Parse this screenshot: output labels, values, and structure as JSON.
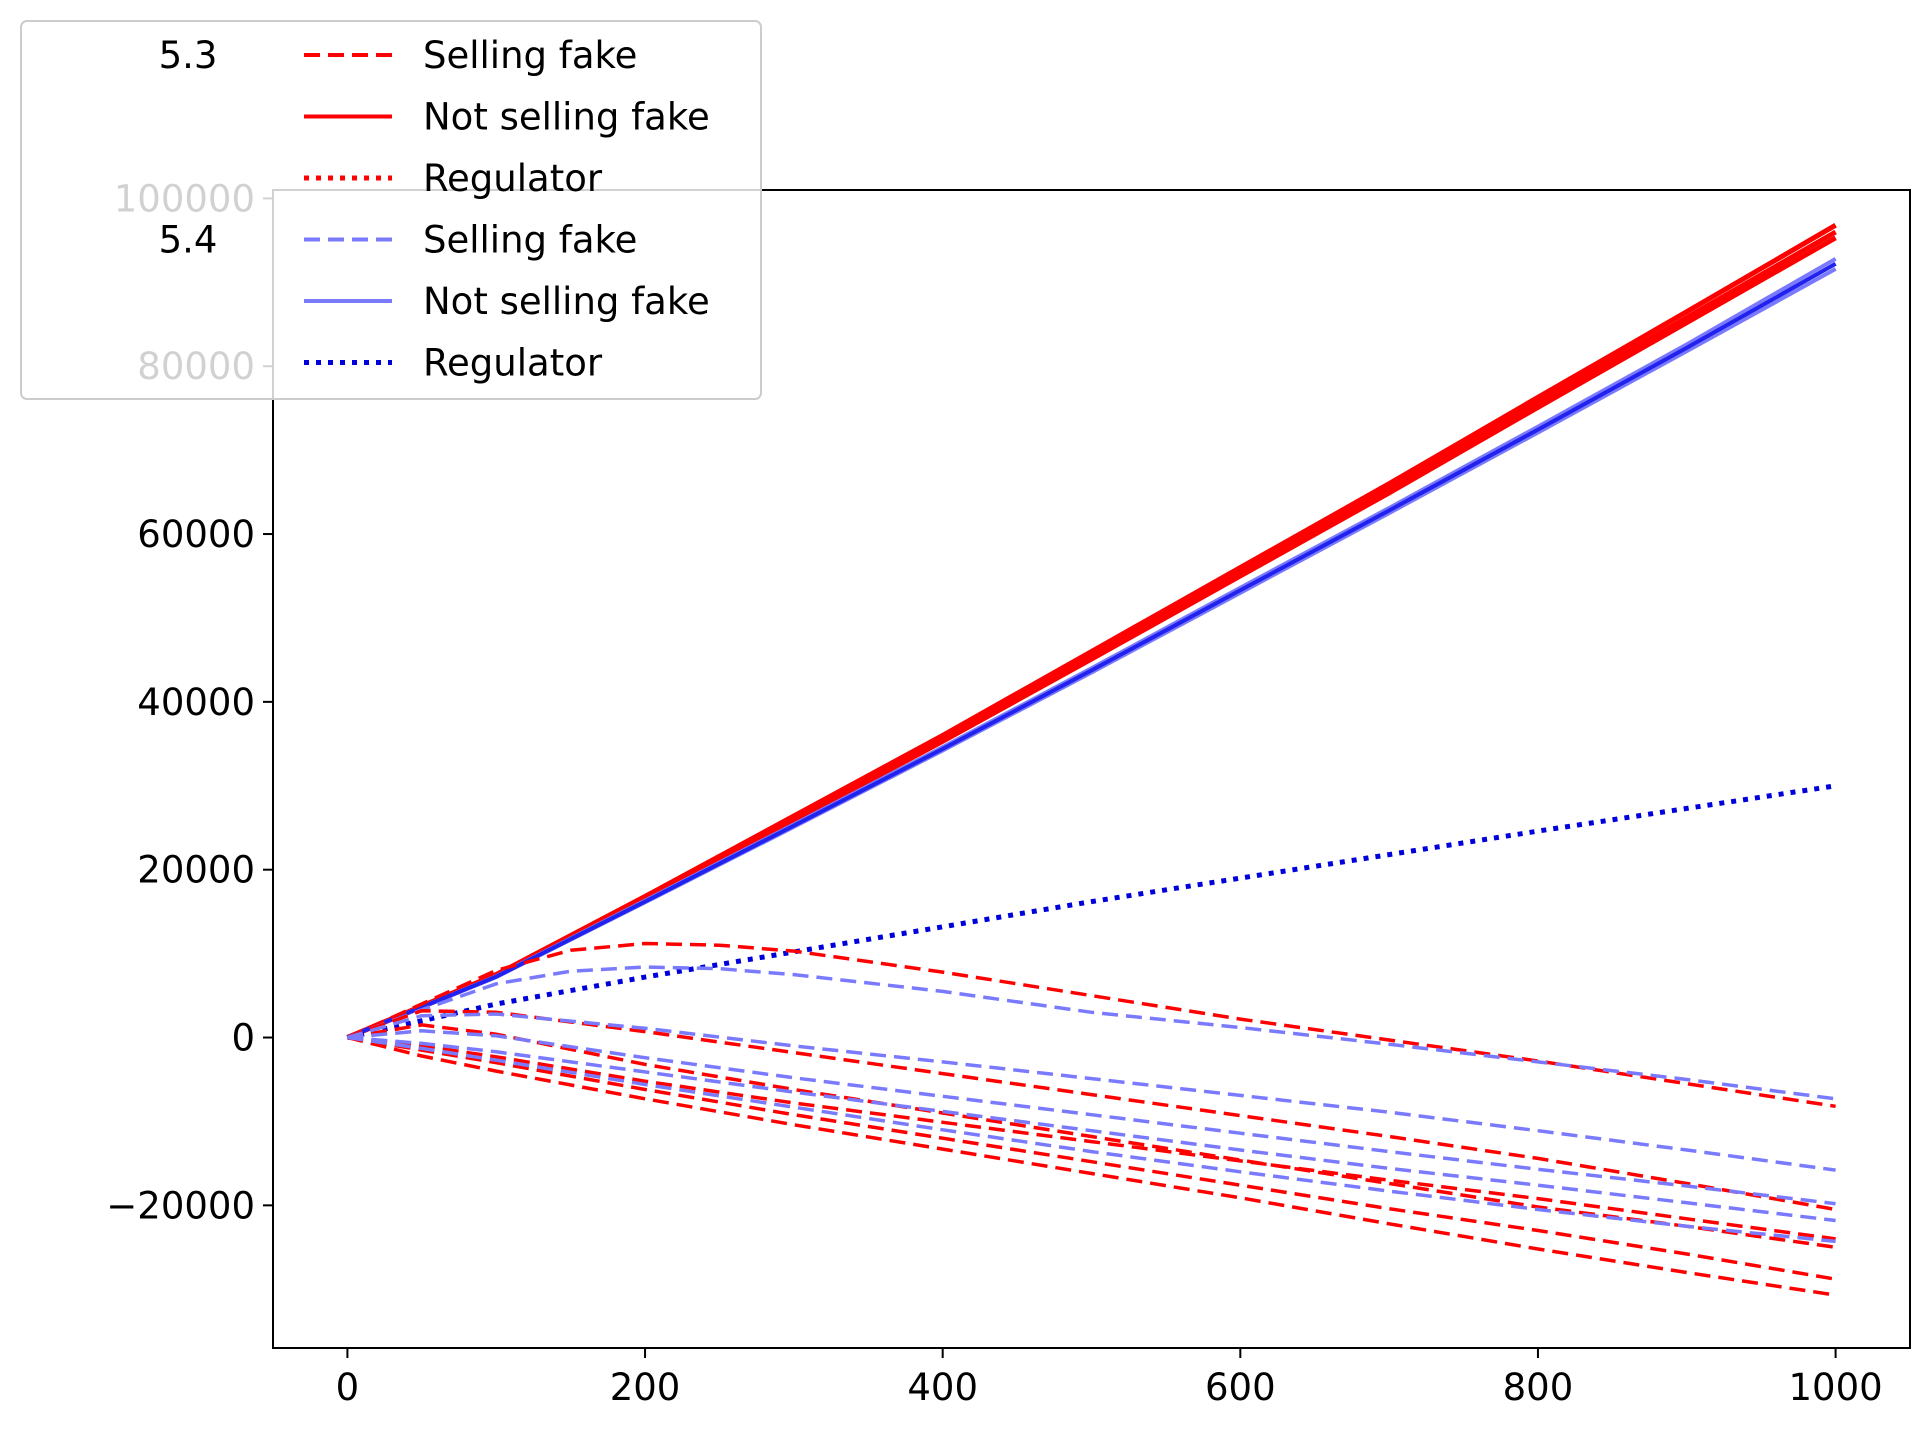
{
  "chart_data": {
    "type": "line",
    "title": "",
    "xlabel": "",
    "ylabel": "",
    "xlim": [
      -50,
      1050
    ],
    "ylim": [
      -37000,
      101000
    ],
    "x_ticks": [
      "0",
      "200",
      "400",
      "600",
      "800",
      "1000"
    ],
    "x_tick_values": [
      0,
      200,
      400,
      600,
      800,
      1000
    ],
    "y_ticks": [
      "−20000",
      "0",
      "20000",
      "40000",
      "60000",
      "80000",
      "100000"
    ],
    "y_tick_values": [
      -20000,
      0,
      20000,
      40000,
      60000,
      80000,
      100000
    ],
    "grid": false,
    "legend": {
      "placement": "top-left",
      "groups": [
        {
          "title": "5.3",
          "entries": [
            {
              "label": "Selling fake",
              "style": "dashed",
              "color": "#ff0000"
            },
            {
              "label": "Not selling fake",
              "style": "solid",
              "color": "#ff0000"
            },
            {
              "label": "Regulator",
              "style": "dotted",
              "color": "#ff0000"
            }
          ]
        },
        {
          "title": "5.4",
          "entries": [
            {
              "label": "Selling fake",
              "style": "dashed",
              "color": "#7a7aff"
            },
            {
              "label": "Not selling fake",
              "style": "solid",
              "color": "#7a7aff"
            },
            {
              "label": "Regulator",
              "style": "dotted",
              "color": "#0000dd"
            }
          ]
        }
      ]
    },
    "series": [
      {
        "group": "5.3",
        "style": "solid",
        "color": "#ff0000",
        "x": [
          0,
          100,
          200,
          300,
          400,
          500,
          600,
          700,
          800,
          900,
          1000
        ],
        "y": [
          0,
          7500,
          16800,
          26400,
          36000,
          46000,
          56000,
          66000,
          76300,
          86500,
          96800
        ]
      },
      {
        "group": "5.3",
        "style": "solid",
        "color": "#ff0000",
        "x": [
          0,
          100,
          200,
          300,
          400,
          500,
          600,
          700,
          800,
          900,
          1000
        ],
        "y": [
          0,
          7400,
          16600,
          26100,
          35600,
          45500,
          55500,
          65500,
          75700,
          85800,
          96000
        ]
      },
      {
        "group": "5.3",
        "style": "solid",
        "color": "#ff0000",
        "x": [
          0,
          100,
          200,
          300,
          400,
          500,
          600,
          700,
          800,
          900,
          1000
        ],
        "y": [
          0,
          7300,
          16400,
          25800,
          35300,
          45100,
          55000,
          64900,
          75100,
          85200,
          95300
        ]
      },
      {
        "group": "5.4",
        "style": "solid",
        "color": "#7a7aff",
        "x": [
          0,
          100,
          200,
          300,
          400,
          500,
          600,
          700,
          800,
          900,
          1000
        ],
        "y": [
          0,
          7300,
          16300,
          25400,
          34600,
          44000,
          53600,
          63100,
          72800,
          82600,
          92800
        ]
      },
      {
        "group": "5.4",
        "style": "solid",
        "color": "#7a7aff",
        "x": [
          0,
          100,
          200,
          300,
          400,
          500,
          600,
          700,
          800,
          900,
          1000
        ],
        "y": [
          0,
          7200,
          16100,
          25100,
          34200,
          43500,
          53000,
          62500,
          72100,
          81800,
          91600
        ]
      },
      {
        "group": "5.4",
        "style": "solid",
        "color": "#2222ee",
        "x": [
          0,
          100,
          200,
          300,
          400,
          500,
          600,
          700,
          800,
          900,
          1000
        ],
        "y": [
          0,
          7250,
          16200,
          25250,
          34400,
          43750,
          53300,
          62800,
          72450,
          82200,
          92200
        ]
      },
      {
        "group": "5.4",
        "style": "dotted",
        "color": "#0000dd",
        "x": [
          0,
          100,
          200,
          300,
          400,
          500,
          600,
          700,
          800,
          900,
          1000
        ],
        "y": [
          0,
          4000,
          7200,
          10200,
          13200,
          16200,
          19000,
          21800,
          24600,
          27300,
          30000
        ]
      },
      {
        "group": "5.3",
        "style": "dashed",
        "color": "#ff0000",
        "x": [
          0,
          50,
          100,
          150,
          200,
          250,
          300,
          400,
          500,
          600,
          700,
          800,
          900,
          1000
        ],
        "y": [
          0,
          4000,
          8000,
          10400,
          11200,
          11000,
          10300,
          7800,
          5000,
          2200,
          -300,
          -2800,
          -5500,
          -8200
        ]
      },
      {
        "group": "5.4",
        "style": "dashed",
        "color": "#7a7aff",
        "x": [
          0,
          50,
          100,
          150,
          200,
          250,
          300,
          400,
          500,
          600,
          700,
          800,
          900,
          1000
        ],
        "y": [
          0,
          3300,
          6400,
          7900,
          8400,
          8200,
          7500,
          5500,
          3000,
          1200,
          -800,
          -2900,
          -5000,
          -7300
        ]
      },
      {
        "group": "5.3",
        "style": "dashed",
        "color": "#ff0000",
        "x": [
          0,
          50,
          100,
          200,
          300,
          400,
          500,
          600,
          700,
          800,
          900,
          1000
        ],
        "y": [
          0,
          3200,
          3000,
          700,
          -1800,
          -4300,
          -6800,
          -9300,
          -11800,
          -14400,
          -17400,
          -20500
        ]
      },
      {
        "group": "5.3",
        "style": "dashed",
        "color": "#ff0000",
        "x": [
          0,
          50,
          100,
          200,
          300,
          400,
          500,
          600,
          700,
          800,
          900,
          1000
        ],
        "y": [
          0,
          1500,
          400,
          -3200,
          -6200,
          -9000,
          -11800,
          -14600,
          -17400,
          -20200,
          -22500,
          -25000
        ]
      },
      {
        "group": "5.3",
        "style": "dashed",
        "color": "#ff0000",
        "x": [
          0,
          50,
          100,
          200,
          300,
          400,
          500,
          600,
          700,
          800,
          900,
          1000
        ],
        "y": [
          0,
          -1500,
          -3000,
          -6200,
          -9200,
          -12000,
          -14800,
          -17600,
          -20400,
          -23000,
          -25800,
          -28800
        ]
      },
      {
        "group": "5.3",
        "style": "dashed",
        "color": "#ff0000",
        "x": [
          0,
          50,
          100,
          200,
          300,
          400,
          500,
          600,
          700,
          800,
          900,
          1000
        ],
        "y": [
          0,
          -2200,
          -4000,
          -7300,
          -10400,
          -13300,
          -16200,
          -19100,
          -22200,
          -25200,
          -28000,
          -30700
        ]
      },
      {
        "group": "5.3",
        "style": "dashed",
        "color": "#ff0000",
        "x": [
          0,
          50,
          100,
          200,
          300,
          400,
          500,
          600,
          700,
          800,
          900,
          1000
        ],
        "y": [
          0,
          -1000,
          -2300,
          -5200,
          -7800,
          -10100,
          -12400,
          -14700,
          -17000,
          -19200,
          -21600,
          -24000
        ]
      },
      {
        "group": "5.4",
        "style": "dashed",
        "color": "#7a7aff",
        "x": [
          0,
          50,
          100,
          200,
          300,
          400,
          500,
          600,
          700,
          800,
          900,
          1000
        ],
        "y": [
          0,
          2600,
          2800,
          1100,
          -1000,
          -2900,
          -4900,
          -6900,
          -8900,
          -11100,
          -13400,
          -15800
        ]
      },
      {
        "group": "5.4",
        "style": "dashed",
        "color": "#7a7aff",
        "x": [
          0,
          50,
          100,
          200,
          300,
          400,
          500,
          600,
          700,
          800,
          900,
          1000
        ],
        "y": [
          0,
          800,
          200,
          -2400,
          -4800,
          -7000,
          -9200,
          -11400,
          -13600,
          -15700,
          -17700,
          -19800
        ]
      },
      {
        "group": "5.4",
        "style": "dashed",
        "color": "#7a7aff",
        "x": [
          0,
          50,
          100,
          200,
          300,
          400,
          500,
          600,
          700,
          800,
          900,
          1000
        ],
        "y": [
          0,
          -700,
          -1700,
          -4100,
          -6500,
          -8800,
          -11100,
          -13400,
          -15600,
          -17600,
          -19700,
          -21800
        ]
      },
      {
        "group": "5.4",
        "style": "dashed",
        "color": "#7a7aff",
        "x": [
          0,
          50,
          100,
          200,
          300,
          400,
          500,
          600,
          700,
          800,
          900,
          1000
        ],
        "y": [
          0,
          -1300,
          -2700,
          -5600,
          -8300,
          -11000,
          -13600,
          -16000,
          -18300,
          -20500,
          -22500,
          -24300
        ]
      }
    ]
  }
}
